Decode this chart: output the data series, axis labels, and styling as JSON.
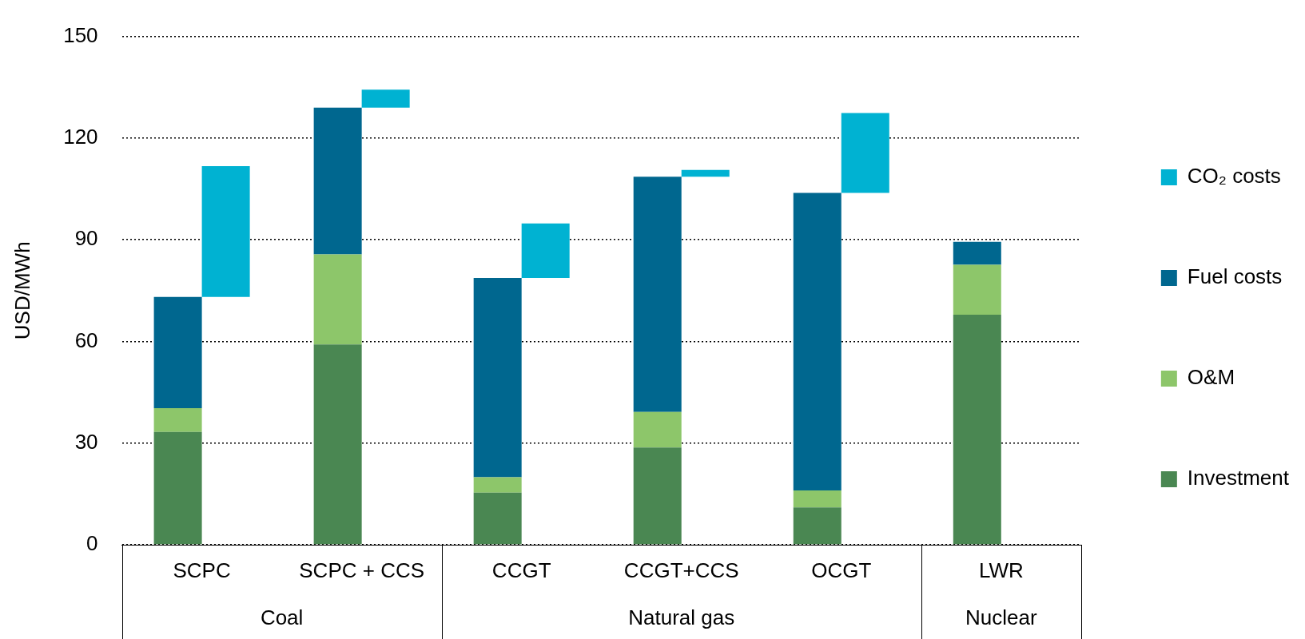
{
  "chart_data": {
    "type": "bar",
    "ylabel": "USD/MWh",
    "categories": [
      "SCPC",
      "SCPC + CCS",
      "CCGT",
      "CCGT+CCS",
      "OCGT",
      "LWR"
    ],
    "series": [
      {
        "name": "Investment",
        "color": "#4a8752",
        "values": [
          33.3,
          59.1,
          15.4,
          28.7,
          11.0,
          67.9
        ]
      },
      {
        "name": "O&M",
        "color": "#8dc66a",
        "values": [
          7.0,
          26.6,
          4.5,
          10.5,
          5.0,
          14.7
        ]
      },
      {
        "name": "Fuel costs",
        "color": "#00678f",
        "values": [
          32.8,
          43.3,
          58.8,
          69.4,
          87.8,
          6.8
        ]
      },
      {
        "name": "CO₂ costs",
        "color": "#00b2d2",
        "values": [
          38.6,
          5.3,
          16.1,
          2.0,
          23.6,
          null
        ],
        "base": [
          73.1,
          129.0,
          78.7,
          108.6,
          103.8,
          null
        ]
      }
    ],
    "stacked": true,
    "ylim": [
      0,
      150
    ],
    "yticks": [
      0,
      30,
      60,
      90,
      120,
      150
    ],
    "grid": "y",
    "legend": "right",
    "annotations": [
      "Coal",
      "Natural gas",
      "Nuclear"
    ]
  }
}
